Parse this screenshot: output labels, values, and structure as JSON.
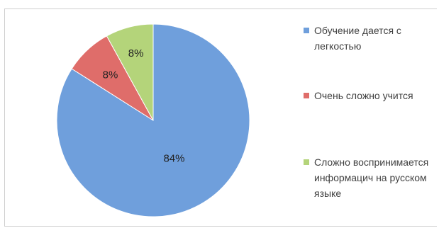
{
  "chart_data": {
    "type": "pie",
    "title": "",
    "categories": [
      "Обучение дается с легкостью",
      "Очень сложно учится",
      "Сложно воспринимается информацич на русском языке"
    ],
    "values": [
      84,
      8,
      8
    ],
    "data_labels": [
      "84%",
      "8%",
      "8%"
    ],
    "colors": [
      "#6f9fdc",
      "#df6d6a",
      "#b4d47a"
    ],
    "start_angle": "12 o'clock, clockwise",
    "legend_position": "right"
  }
}
